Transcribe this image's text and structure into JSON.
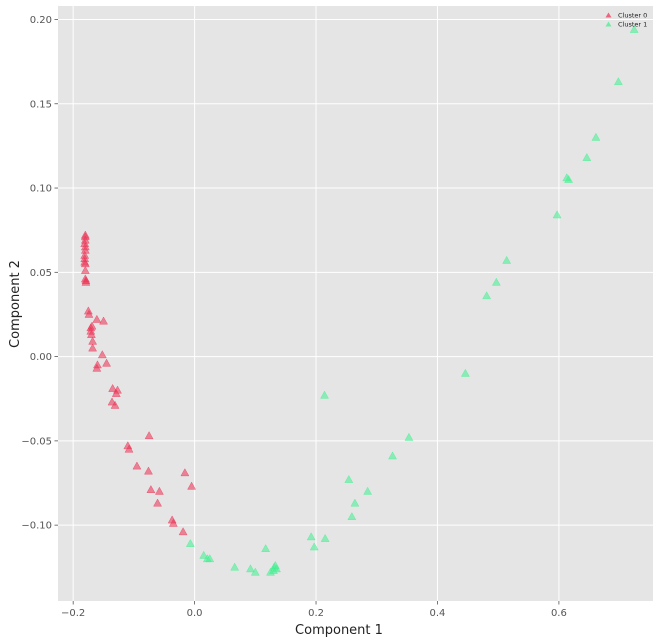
{
  "chart_data": {
    "type": "scatter",
    "title": "",
    "xlabel": "Component 1",
    "ylabel": "Component 2",
    "xlim": [
      -0.225,
      0.755
    ],
    "ylim": [
      -0.145,
      0.208
    ],
    "x_ticks": [
      -0.2,
      0.0,
      0.2,
      0.4,
      0.6
    ],
    "x_tick_labels": [
      "−0.2",
      "0.0",
      "0.2",
      "0.4",
      "0.6"
    ],
    "y_ticks": [
      -0.1,
      -0.05,
      0.0,
      0.05,
      0.1,
      0.15,
      0.2
    ],
    "y_tick_labels": [
      "−0.10",
      "−0.05",
      "0.00",
      "0.05",
      "0.10",
      "0.15",
      "0.20"
    ],
    "grid": true,
    "legend_position": "top-right",
    "marker": "triangle",
    "series": [
      {
        "name": "Cluster 0",
        "color": "#ec2f52",
        "points": [
          [
            -0.18,
            0.072
          ],
          [
            -0.18,
            0.071
          ],
          [
            -0.18,
            0.069
          ],
          [
            -0.181,
            0.067
          ],
          [
            -0.18,
            0.065
          ],
          [
            -0.18,
            0.063
          ],
          [
            -0.181,
            0.06
          ],
          [
            -0.181,
            0.058
          ],
          [
            -0.181,
            0.056
          ],
          [
            -0.18,
            0.055
          ],
          [
            -0.18,
            0.051
          ],
          [
            -0.18,
            0.046
          ],
          [
            -0.179,
            0.045
          ],
          [
            -0.179,
            0.044
          ],
          [
            -0.175,
            0.027
          ],
          [
            -0.174,
            0.025
          ],
          [
            -0.169,
            0.018
          ],
          [
            -0.171,
            0.017
          ],
          [
            -0.171,
            0.015
          ],
          [
            -0.17,
            0.013
          ],
          [
            -0.168,
            0.009
          ],
          [
            -0.168,
            0.005
          ],
          [
            -0.161,
            0.022
          ],
          [
            -0.15,
            0.021
          ],
          [
            -0.16,
            -0.005
          ],
          [
            -0.161,
            -0.007
          ],
          [
            -0.152,
            0.001
          ],
          [
            -0.145,
            -0.004
          ],
          [
            -0.135,
            -0.019
          ],
          [
            -0.127,
            -0.02
          ],
          [
            -0.129,
            -0.022
          ],
          [
            -0.136,
            -0.027
          ],
          [
            -0.131,
            -0.029
          ],
          [
            -0.11,
            -0.053
          ],
          [
            -0.108,
            -0.055
          ],
          [
            -0.075,
            -0.047
          ],
          [
            -0.095,
            -0.065
          ],
          [
            -0.076,
            -0.068
          ],
          [
            -0.072,
            -0.079
          ],
          [
            -0.058,
            -0.08
          ],
          [
            -0.061,
            -0.087
          ],
          [
            -0.037,
            -0.097
          ],
          [
            -0.035,
            -0.099
          ],
          [
            -0.016,
            -0.069
          ],
          [
            -0.005,
            -0.077
          ],
          [
            -0.019,
            -0.104
          ]
        ]
      },
      {
        "name": "Cluster 1",
        "color": "#3ff08f",
        "points": [
          [
            -0.007,
            -0.111
          ],
          [
            0.015,
            -0.118
          ],
          [
            0.021,
            -0.12
          ],
          [
            0.025,
            -0.12
          ],
          [
            0.066,
            -0.125
          ],
          [
            0.092,
            -0.126
          ],
          [
            0.1,
            -0.128
          ],
          [
            0.117,
            -0.114
          ],
          [
            0.125,
            -0.128
          ],
          [
            0.13,
            -0.127
          ],
          [
            0.131,
            -0.125
          ],
          [
            0.133,
            -0.124
          ],
          [
            0.135,
            -0.126
          ],
          [
            0.192,
            -0.107
          ],
          [
            0.197,
            -0.113
          ],
          [
            0.215,
            -0.108
          ],
          [
            0.214,
            -0.023
          ],
          [
            0.254,
            -0.073
          ],
          [
            0.259,
            -0.095
          ],
          [
            0.264,
            -0.087
          ],
          [
            0.285,
            -0.08
          ],
          [
            0.326,
            -0.059
          ],
          [
            0.353,
            -0.048
          ],
          [
            0.446,
            -0.01
          ],
          [
            0.481,
            0.036
          ],
          [
            0.497,
            0.044
          ],
          [
            0.514,
            0.057
          ],
          [
            0.597,
            0.084
          ],
          [
            0.613,
            0.106
          ],
          [
            0.616,
            0.105
          ],
          [
            0.646,
            0.118
          ],
          [
            0.661,
            0.13
          ],
          [
            0.698,
            0.163
          ],
          [
            0.724,
            0.194
          ]
        ]
      }
    ]
  }
}
